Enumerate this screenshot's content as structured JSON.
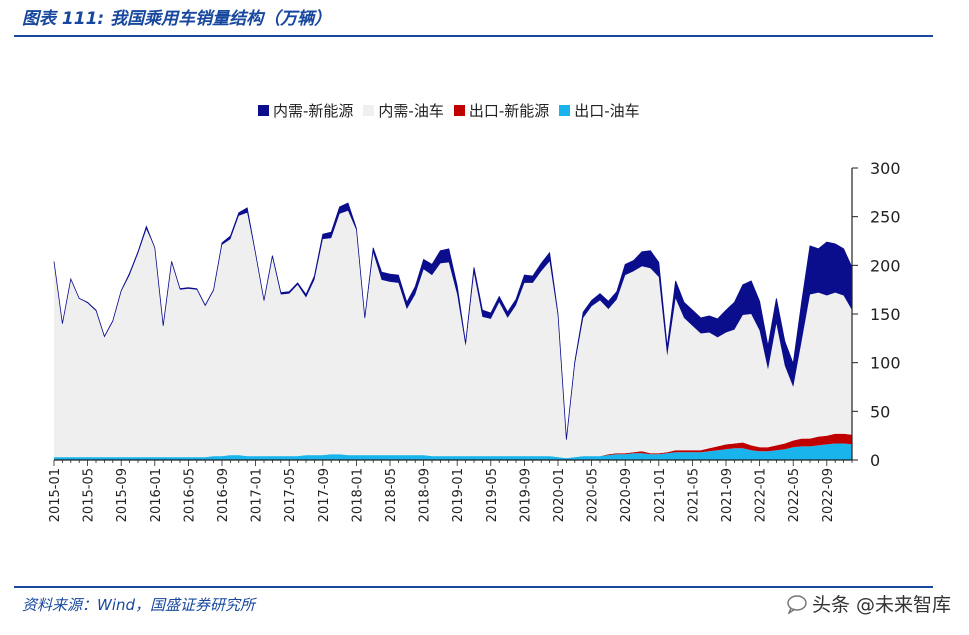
{
  "header": {
    "title": "图表 111:  我国乘用车销量结构（万辆）"
  },
  "footer": {
    "source": "资料来源：Wind，国盛证券研究所",
    "watermark": "头条 @未来智库"
  },
  "colors": {
    "domestic_nev": "#0a0e8c",
    "domestic_ice": "#efefef",
    "export_nev": "#c00000",
    "export_ice": "#19b4ec",
    "accent": "#17479e"
  },
  "chart_data": {
    "type": "area",
    "stacked": true,
    "title": "",
    "xlabel": "",
    "ylabel": "",
    "ylim": [
      0,
      300
    ],
    "yticks": [
      0,
      50,
      100,
      150,
      200,
      250,
      300
    ],
    "y_axis_side": "right",
    "legend_position": "top",
    "x_tick_labels": [
      "2015-01",
      "2015-05",
      "2015-09",
      "2016-01",
      "2016-05",
      "2016-09",
      "2017-01",
      "2017-05",
      "2017-09",
      "2018-01",
      "2018-05",
      "2018-09",
      "2019-01",
      "2019-05",
      "2019-09",
      "2020-01",
      "2020-05",
      "2020-09",
      "2021-01",
      "2021-05",
      "2021-09",
      "2022-01",
      "2022-05",
      "2022-09"
    ],
    "x_tick_every": 4,
    "start": "2015-01",
    "series": [
      {
        "name": "出口-油车",
        "color": "#19b4ec",
        "values": [
          3,
          3,
          3,
          3,
          3,
          3,
          3,
          3,
          3,
          3,
          3,
          3,
          3,
          3,
          3,
          3,
          3,
          3,
          3,
          4,
          4,
          5,
          5,
          4,
          4,
          4,
          4,
          4,
          4,
          4,
          5,
          5,
          5,
          6,
          6,
          5,
          5,
          5,
          5,
          5,
          5,
          5,
          5,
          5,
          5,
          4,
          4,
          4,
          4,
          4,
          4,
          4,
          4,
          4,
          4,
          4,
          4,
          4,
          4,
          4,
          3,
          2,
          3,
          4,
          4,
          4,
          5,
          6,
          6,
          7,
          7,
          6,
          6,
          7,
          8,
          8,
          8,
          8,
          9,
          10,
          11,
          12,
          12,
          10,
          9,
          9,
          10,
          11,
          13,
          14,
          14,
          15,
          16,
          17,
          17,
          16
        ]
      },
      {
        "name": "出口-新能源",
        "color": "#c00000",
        "values": [
          0,
          0,
          0,
          0,
          0,
          0,
          0,
          0,
          0,
          0,
          0,
          0,
          0,
          0,
          0,
          0,
          0,
          0,
          0,
          0,
          0,
          0,
          0,
          0,
          0,
          0,
          0,
          0,
          0,
          0,
          0,
          0,
          0,
          0,
          0,
          0,
          0,
          0,
          0,
          0,
          0,
          0,
          0,
          0,
          0,
          0,
          0,
          0,
          0,
          0,
          0,
          0,
          0,
          0,
          0,
          0,
          0,
          0,
          0,
          0,
          0,
          0,
          0,
          0,
          0,
          0,
          1,
          1,
          1,
          1,
          2,
          1,
          1,
          1,
          2,
          2,
          2,
          2,
          3,
          4,
          5,
          5,
          6,
          5,
          4,
          4,
          5,
          6,
          7,
          8,
          8,
          9,
          9,
          10,
          10,
          10
        ]
      },
      {
        "name": "内需-油车",
        "color": "#efefef",
        "values": [
          201,
          137,
          183,
          163,
          158,
          150,
          123,
          139,
          170,
          187,
          209,
          234,
          215,
          134,
          200,
          172,
          173,
          172,
          155,
          170,
          217,
          222,
          246,
          250,
          207,
          159,
          204,
          166,
          167,
          176,
          162,
          180,
          222,
          222,
          247,
          251,
          231,
          140,
          208,
          180,
          178,
          177,
          150,
          165,
          191,
          186,
          198,
          199,
          166,
          113,
          188,
          143,
          141,
          158,
          142,
          155,
          178,
          178,
          190,
          200,
          144,
          18,
          95,
          142,
          154,
          160,
          149,
          158,
          183,
          186,
          190,
          190,
          181,
          99,
          156,
          136,
          128,
          120,
          119,
          112,
          115,
          117,
          131,
          135,
          120,
          80,
          125,
          80,
          55,
          100,
          148,
          148,
          144,
          145,
          142,
          128
        ]
      },
      {
        "name": "内需-新能源",
        "color": "#0a0e8c",
        "values": [
          0,
          0,
          0,
          0,
          1,
          1,
          1,
          1,
          1,
          2,
          2,
          3,
          0,
          1,
          1,
          1,
          1,
          1,
          1,
          1,
          2,
          3,
          3,
          5,
          1,
          1,
          2,
          2,
          2,
          2,
          3,
          4,
          5,
          6,
          7,
          8,
          2,
          1,
          5,
          8,
          8,
          8,
          7,
          8,
          10,
          11,
          13,
          14,
          9,
          3,
          6,
          7,
          6,
          6,
          6,
          6,
          8,
          7,
          8,
          9,
          3,
          1,
          3,
          6,
          6,
          7,
          8,
          8,
          11,
          11,
          15,
          18,
          15,
          9,
          18,
          16,
          16,
          16,
          17,
          19,
          23,
          28,
          31,
          34,
          30,
          24,
          26,
          25,
          24,
          40,
          50,
          45,
          55,
          50,
          48,
          44
        ]
      }
    ]
  }
}
